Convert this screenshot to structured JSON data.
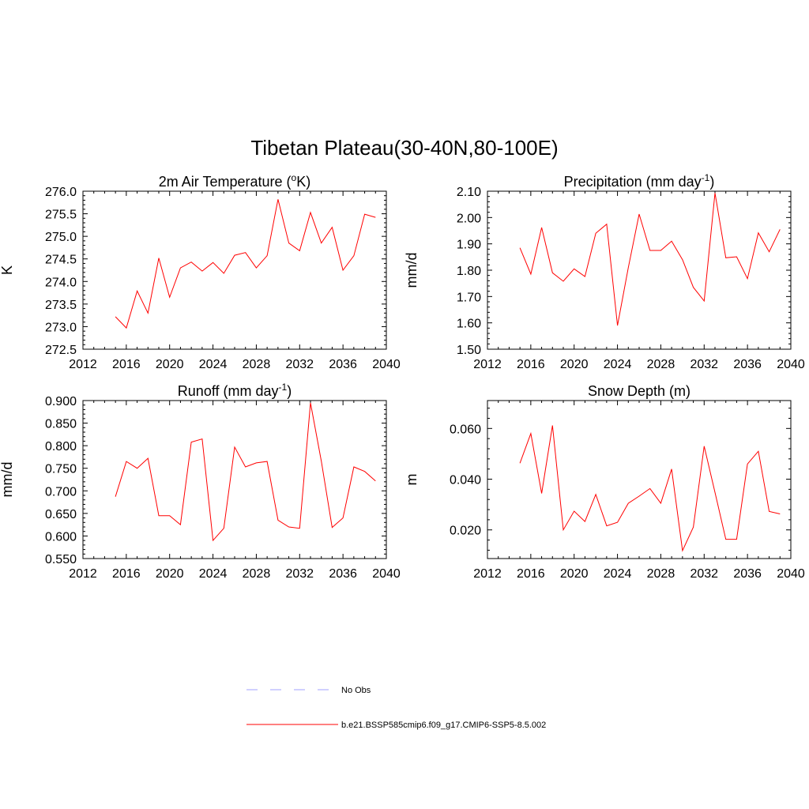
{
  "title": "Tibetan Plateau(30-40N,80-100E)",
  "colors": {
    "model": "#ff0000",
    "obs": "#a0a0ff"
  },
  "legend": [
    {
      "label": "No Obs",
      "style": "dashed",
      "color": "#a0a0ff"
    },
    {
      "label": "b.e21.BSSP585cmip6.f09_g17.CMIP6-SSP5-8.5.002",
      "style": "solid",
      "color": "#ff0000"
    }
  ],
  "chart_data": [
    {
      "type": "line",
      "title_main": "2m Air Temperature (",
      "title_sup": "o",
      "title_end": "K)",
      "ylabel": "K",
      "xlim": [
        2012,
        2040
      ],
      "ylim": [
        272.5,
        276.0
      ],
      "xticks": [
        "2012",
        "2016",
        "2020",
        "2024",
        "2028",
        "2032",
        "2036",
        "2040"
      ],
      "yticks": [
        "272.5",
        "273.0",
        "273.5",
        "274.0",
        "274.5",
        "275.0",
        "275.5",
        "276.0"
      ],
      "x": [
        2015,
        2016,
        2017,
        2018,
        2019,
        2020,
        2021,
        2022,
        2023,
        2024,
        2025,
        2026,
        2027,
        2028,
        2029,
        2030,
        2031,
        2032,
        2033,
        2034,
        2035,
        2036,
        2037,
        2038,
        2039
      ],
      "series": [
        {
          "name": "b.e21.BSSP585cmip6.f09_g17.CMIP6-SSP5-8.5.002",
          "values": [
            273.22,
            272.97,
            273.79,
            273.3,
            274.52,
            273.65,
            274.3,
            274.43,
            274.23,
            274.42,
            274.18,
            274.58,
            274.64,
            274.3,
            274.57,
            275.82,
            274.85,
            274.68,
            275.53,
            274.85,
            275.2,
            274.25,
            274.57,
            275.49,
            275.42
          ]
        }
      ]
    },
    {
      "type": "line",
      "title_main": "Precipitation (mm day",
      "title_sup": "-1",
      "title_end": ")",
      "ylabel": "mm/d",
      "xlim": [
        2012,
        2040
      ],
      "ylim": [
        1.5,
        2.1
      ],
      "xticks": [
        "2012",
        "2016",
        "2020",
        "2024",
        "2028",
        "2032",
        "2036",
        "2040"
      ],
      "yticks": [
        "1.50",
        "1.60",
        "1.70",
        "1.80",
        "1.90",
        "2.00",
        "2.10"
      ],
      "x": [
        2015,
        2016,
        2017,
        2018,
        2019,
        2020,
        2021,
        2022,
        2023,
        2024,
        2025,
        2026,
        2027,
        2028,
        2029,
        2030,
        2031,
        2032,
        2033,
        2034,
        2035,
        2036,
        2037,
        2038,
        2039
      ],
      "series": [
        {
          "name": "b.e21.BSSP585cmip6.f09_g17.CMIP6-SSP5-8.5.002",
          "values": [
            1.885,
            1.785,
            1.962,
            1.79,
            1.758,
            1.805,
            1.776,
            1.94,
            1.975,
            1.59,
            1.81,
            2.013,
            1.875,
            1.875,
            1.91,
            1.84,
            1.735,
            1.683,
            2.093,
            1.847,
            1.851,
            1.768,
            1.942,
            1.87,
            1.955
          ]
        }
      ]
    },
    {
      "type": "line",
      "title_main": "Runoff (mm day",
      "title_sup": "-1",
      "title_end": ")",
      "ylabel": "mm/d",
      "xlim": [
        2012,
        2040
      ],
      "ylim": [
        0.55,
        0.9
      ],
      "xticks": [
        "2012",
        "2016",
        "2020",
        "2024",
        "2028",
        "2032",
        "2036",
        "2040"
      ],
      "yticks": [
        "0.550",
        "0.600",
        "0.650",
        "0.700",
        "0.750",
        "0.800",
        "0.850",
        "0.900"
      ],
      "x": [
        2015,
        2016,
        2017,
        2018,
        2019,
        2020,
        2021,
        2022,
        2023,
        2024,
        2025,
        2026,
        2027,
        2028,
        2029,
        2030,
        2031,
        2032,
        2033,
        2034,
        2035,
        2036,
        2037,
        2038,
        2039
      ],
      "series": [
        {
          "name": "b.e21.BSSP585cmip6.f09_g17.CMIP6-SSP5-8.5.002",
          "values": [
            0.687,
            0.765,
            0.75,
            0.772,
            0.645,
            0.645,
            0.625,
            0.808,
            0.815,
            0.59,
            0.617,
            0.797,
            0.753,
            0.762,
            0.765,
            0.635,
            0.62,
            0.617,
            0.895,
            0.766,
            0.619,
            0.64,
            0.753,
            0.743,
            0.722
          ]
        }
      ]
    },
    {
      "type": "line",
      "title_main": "Snow Depth (m)",
      "title_sup": "",
      "title_end": "",
      "ylabel": "m",
      "xlim": [
        2012,
        2040
      ],
      "ylim": [
        0.0087,
        0.071
      ],
      "xticks": [
        "2012",
        "2016",
        "2020",
        "2024",
        "2028",
        "2032",
        "2036",
        "2040"
      ],
      "yticks": [
        "0.020",
        "0.040",
        "0.060"
      ],
      "x": [
        2015,
        2016,
        2017,
        2018,
        2019,
        2020,
        2021,
        2022,
        2023,
        2024,
        2025,
        2026,
        2027,
        2028,
        2029,
        2030,
        2031,
        2032,
        2033,
        2034,
        2035,
        2036,
        2037,
        2038,
        2039
      ],
      "series": [
        {
          "name": "b.e21.BSSP585cmip6.f09_g17.CMIP6-SSP5-8.5.002",
          "values": [
            0.0463,
            0.058,
            0.0344,
            0.0612,
            0.02,
            0.0274,
            0.0233,
            0.034,
            0.0216,
            0.023,
            0.0305,
            0.0333,
            0.0363,
            0.0305,
            0.044,
            0.0118,
            0.0211,
            0.053,
            0.0348,
            0.0163,
            0.0163,
            0.046,
            0.051,
            0.0273,
            0.0263
          ]
        }
      ]
    }
  ]
}
